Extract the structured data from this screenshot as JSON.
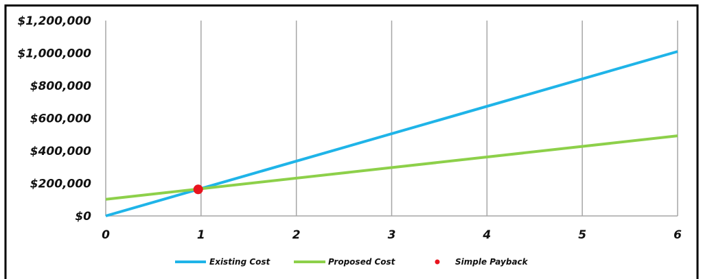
{
  "chart_data": {
    "type": "line",
    "title": "",
    "xlabel": "",
    "ylabel": "",
    "x": [
      0,
      1,
      2,
      3,
      4,
      5,
      6
    ],
    "xlim": [
      0,
      6
    ],
    "ylim": [
      0,
      1200000
    ],
    "x_tick_labels": [
      "0",
      "1",
      "2",
      "3",
      "4",
      "5",
      "6"
    ],
    "y_ticks": [
      0,
      200000,
      400000,
      600000,
      800000,
      1000000,
      1200000
    ],
    "y_tick_labels": [
      "$0",
      "$200,000",
      "$400,000",
      "$600,000",
      "$800,000",
      "$1,000,000",
      "$1,200,000"
    ],
    "grid": "vertical",
    "legend_position": "bottom",
    "series": [
      {
        "name": "Existing Cost",
        "color": "#1FB4E8",
        "marker": "line",
        "x": [
          0,
          6
        ],
        "y": [
          0,
          1010000
        ]
      },
      {
        "name": "Proposed Cost",
        "color": "#8DD04A",
        "marker": "line",
        "x": [
          0,
          6
        ],
        "y": [
          102000,
          492000
        ]
      },
      {
        "name": "Simple Payback",
        "color": "#E8141E",
        "marker": "point",
        "x": [
          0.97
        ],
        "y": [
          163000
        ]
      }
    ]
  }
}
